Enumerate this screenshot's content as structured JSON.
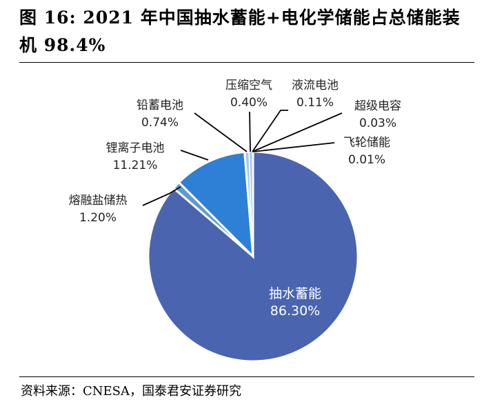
{
  "title": "图 16: 2021 年中国抽水蓄能+电化学储能占总储能装机 98.4%",
  "source": "资料来源：CNESA，国泰君安证券研究",
  "colors": {
    "pumped_hydro": "#4a64b0",
    "lithium": "#2e7fd6",
    "molten_salt": "#5b9bd5",
    "small": "#a9c6e8",
    "leader": "#000000"
  },
  "chart_data": {
    "type": "pie",
    "title": "图 16: 2021 年中国抽水蓄能+电化学储能占总储能装机 98.4%",
    "start_angle_deg": 0,
    "direction": "clockwise",
    "slices": [
      {
        "name": "抽水蓄能",
        "value": 86.3,
        "label": "86.30%",
        "color": "#4a64b0"
      },
      {
        "name": "熔融盐储热",
        "value": 1.2,
        "label": "1.20%",
        "color": "#5b9bd5"
      },
      {
        "name": "锂离子电池",
        "value": 11.21,
        "label": "11.21%",
        "color": "#2e7fd6"
      },
      {
        "name": "铅蓄电池",
        "value": 0.74,
        "label": "0.74%",
        "color": "#a9c6e8"
      },
      {
        "name": "压缩空气",
        "value": 0.4,
        "label": "0.40%",
        "color": "#a9c6e8"
      },
      {
        "name": "液流电池",
        "value": 0.11,
        "label": "0.11%",
        "color": "#a9c6e8"
      },
      {
        "name": "超级电容",
        "value": 0.03,
        "label": "0.03%",
        "color": "#a9c6e8"
      },
      {
        "name": "飞轮储能",
        "value": 0.01,
        "label": "0.01%",
        "color": "#a9c6e8"
      }
    ]
  }
}
